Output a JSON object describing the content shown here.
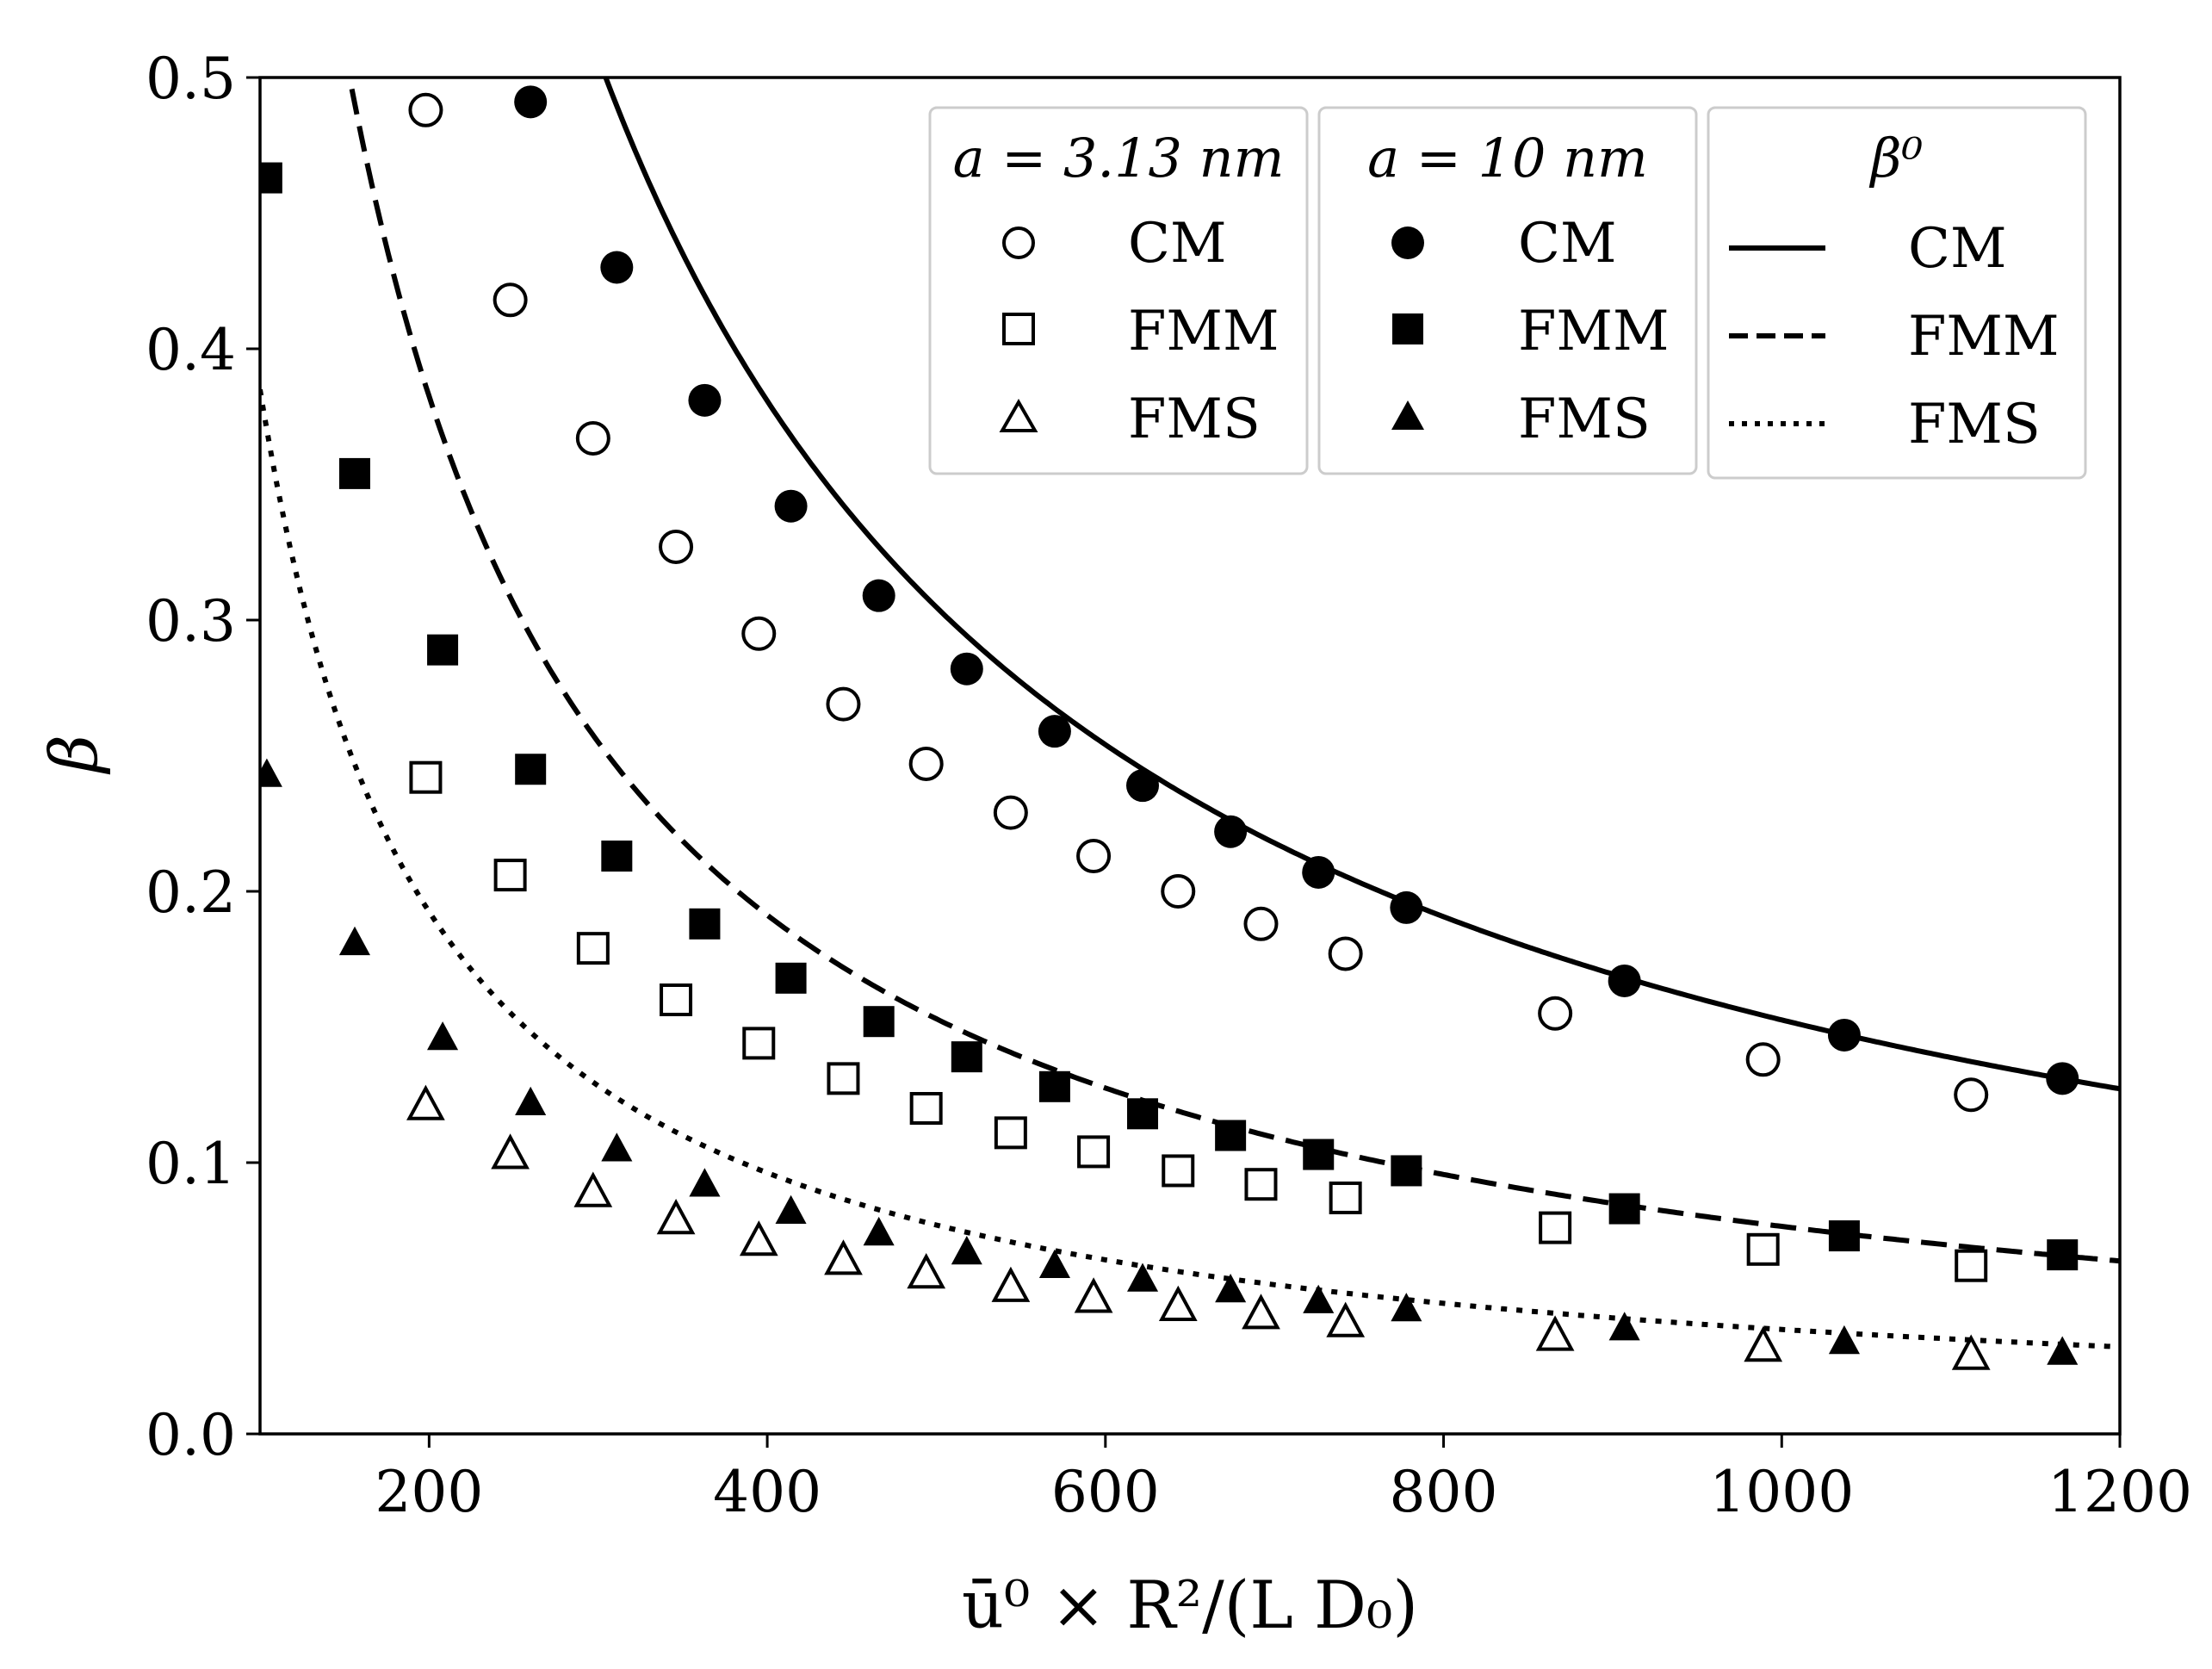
{
  "chart_data": {
    "type": "scatter",
    "title": "",
    "xlabel": "ū⁰ × R²/(L D₀)",
    "ylabel": "β",
    "xlim": [
      100,
      1200
    ],
    "ylim": [
      0.0,
      0.5
    ],
    "grid": false,
    "x_ticks": [
      200,
      400,
      600,
      800,
      1000,
      1200
    ],
    "x_tick_labels": [
      "200",
      "400",
      "600",
      "800",
      "1000",
      "1200"
    ],
    "y_ticks": [
      0.0,
      0.1,
      0.2,
      0.3,
      0.4,
      0.5
    ],
    "y_tick_labels": [
      "0.0",
      "0.1",
      "0.2",
      "0.3",
      "0.4",
      "0.5"
    ],
    "legend_groups": [
      {
        "title": "a = 3.13 nm",
        "entries": [
          {
            "label": "CM",
            "marker": "circle",
            "fill": "none"
          },
          {
            "label": "FMM",
            "marker": "square",
            "fill": "none"
          },
          {
            "label": "FMS",
            "marker": "triangle",
            "fill": "none"
          }
        ]
      },
      {
        "title": "a = 10 nm",
        "entries": [
          {
            "label": "CM",
            "marker": "circle",
            "fill": "solid"
          },
          {
            "label": "FMM",
            "marker": "square",
            "fill": "solid"
          },
          {
            "label": "FMS",
            "marker": "triangle",
            "fill": "solid"
          }
        ]
      },
      {
        "title": "β⁰",
        "entries": [
          {
            "label": "CM",
            "line": "solid"
          },
          {
            "label": "FMM",
            "line": "dashed"
          },
          {
            "label": "FMS",
            "line": "dotted"
          }
        ]
      }
    ],
    "series": [
      {
        "name": "a = 3.13 nm CM",
        "marker": "circle",
        "fill": "none",
        "x": [
          198,
          248,
          297,
          346,
          395,
          445,
          494,
          544,
          593,
          643,
          692,
          742,
          866,
          989,
          1112
        ],
        "y": [
          0.488,
          0.418,
          0.367,
          0.327,
          0.295,
          0.269,
          0.247,
          0.229,
          0.213,
          0.2,
          0.188,
          0.177,
          0.155,
          0.138,
          0.125
        ]
      },
      {
        "name": "a = 3.13 nm FMM",
        "marker": "square",
        "fill": "none",
        "x": [
          198,
          248,
          297,
          346,
          395,
          445,
          494,
          544,
          593,
          643,
          692,
          742,
          866,
          989,
          1112
        ],
        "y": [
          0.242,
          0.206,
          0.179,
          0.16,
          0.144,
          0.131,
          0.12,
          0.111,
          0.104,
          0.097,
          0.092,
          0.087,
          0.076,
          0.068,
          0.062
        ]
      },
      {
        "name": "a = 3.13 nm FMS",
        "marker": "triangle",
        "fill": "none",
        "x": [
          198,
          248,
          297,
          346,
          395,
          445,
          494,
          544,
          593,
          643,
          692,
          742,
          866,
          989,
          1112
        ],
        "y": [
          0.121,
          0.103,
          0.089,
          0.079,
          0.071,
          0.064,
          0.059,
          0.054,
          0.05,
          0.047,
          0.044,
          0.041,
          0.036,
          0.032,
          0.029
        ]
      },
      {
        "name": "a = 10 nm CM",
        "marker": "circle",
        "fill": "solid",
        "x": [
          260,
          311,
          363,
          414,
          466,
          518,
          570,
          622,
          674,
          726,
          778,
          907,
          1037,
          1166
        ],
        "y": [
          0.491,
          0.43,
          0.381,
          0.342,
          0.309,
          0.282,
          0.259,
          0.239,
          0.222,
          0.207,
          0.194,
          0.167,
          0.147,
          0.131
        ]
      },
      {
        "name": "a = 10 nm FMM",
        "marker": "square",
        "fill": "solid",
        "x": [
          104,
          156,
          208,
          260,
          311,
          363,
          414,
          466,
          518,
          570,
          622,
          674,
          726,
          778,
          907,
          1037,
          1166
        ],
        "y": [
          0.463,
          0.354,
          0.289,
          0.245,
          0.213,
          0.188,
          0.168,
          0.152,
          0.139,
          0.128,
          0.118,
          0.11,
          0.103,
          0.097,
          0.083,
          0.073,
          0.066
        ]
      },
      {
        "name": "a = 10 nm FMS",
        "marker": "triangle",
        "fill": "solid",
        "x": [
          104,
          156,
          208,
          260,
          311,
          363,
          414,
          466,
          518,
          570,
          622,
          674,
          726,
          778,
          907,
          1037,
          1166
        ],
        "y": [
          0.243,
          0.181,
          0.146,
          0.122,
          0.105,
          0.092,
          0.082,
          0.074,
          0.067,
          0.062,
          0.057,
          0.053,
          0.049,
          0.046,
          0.039,
          0.034,
          0.03
        ]
      }
    ],
    "curves": [
      {
        "name": "β⁰ CM",
        "style": "solid",
        "formula": "150.5 / x^0.998",
        "coef": 150.5,
        "exp": 0.998
      },
      {
        "name": "β⁰ FMM",
        "style": "dashed",
        "formula": "76.5 / x",
        "coef": 76.5,
        "exp": 1.0
      },
      {
        "name": "β⁰ FMS",
        "style": "dotted",
        "formula": "38.5 / x",
        "coef": 38.5,
        "exp": 1.0
      }
    ]
  }
}
